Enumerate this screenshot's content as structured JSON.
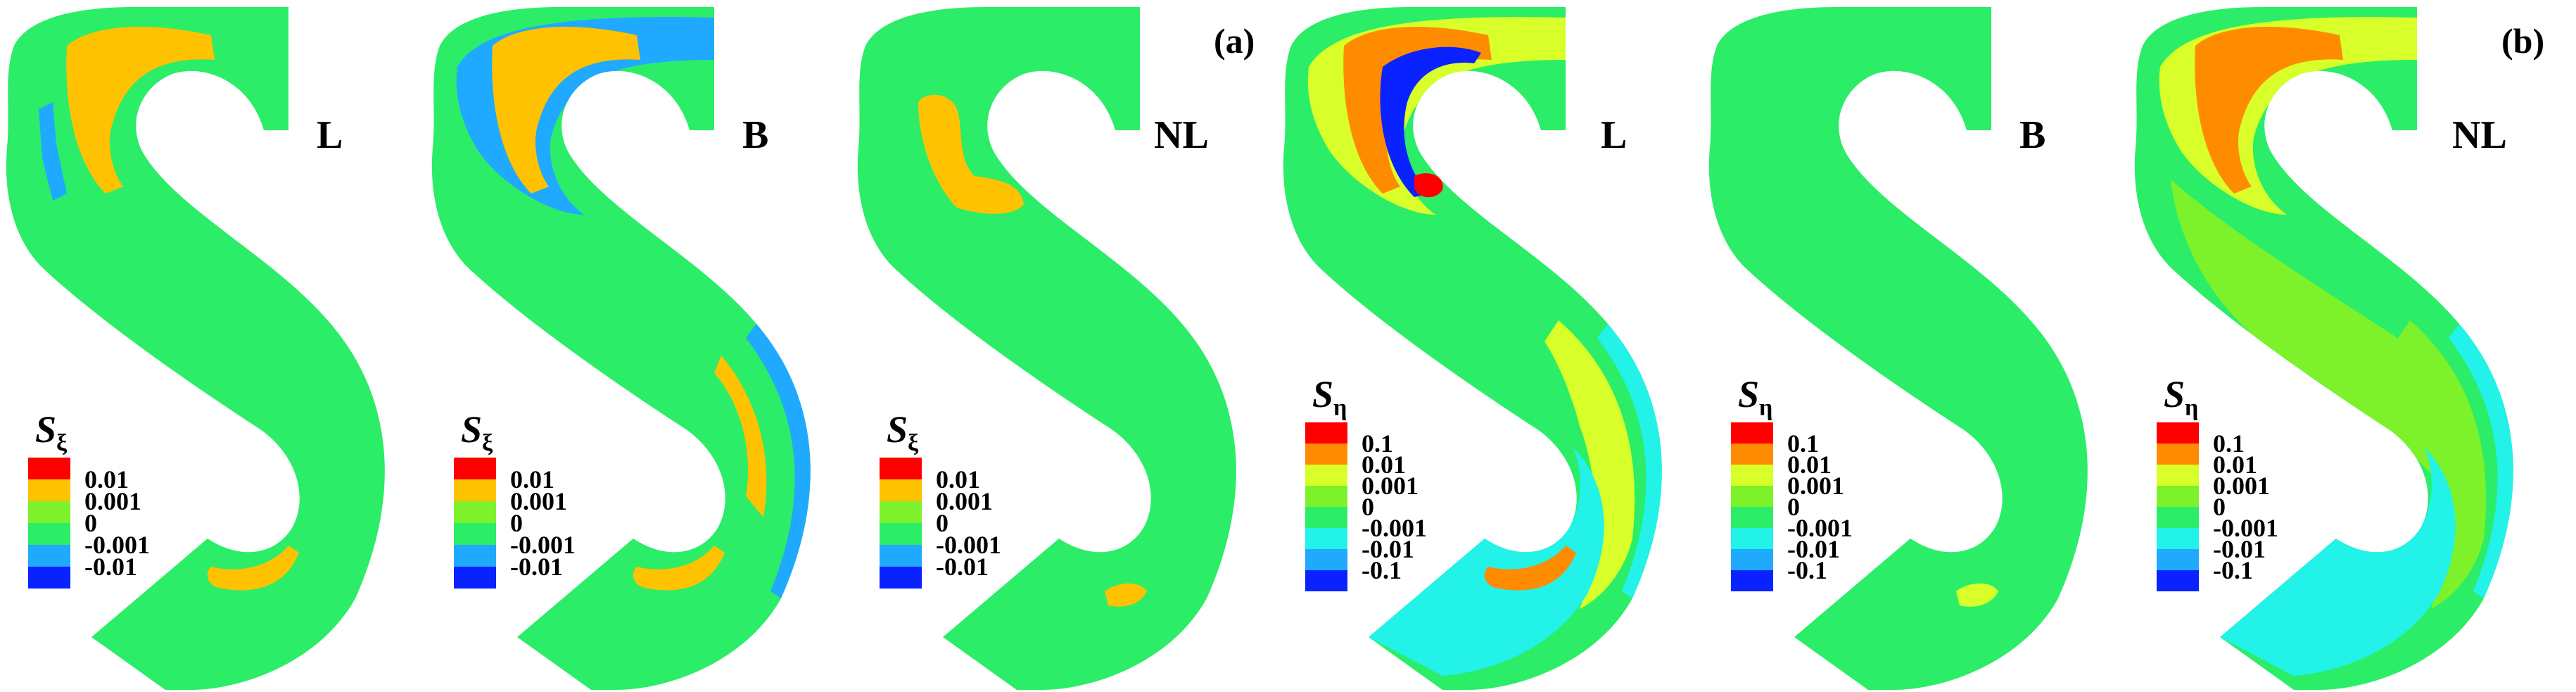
{
  "part_labels": [
    "(a)",
    "(b)"
  ],
  "colors": {
    "background": "#2bed68",
    "red": "#ff0000",
    "orange": "#ff8c00",
    "yellow_orange": "#ffc200",
    "yellow_green": "#d8ff2a",
    "light_green": "#7df22a",
    "green": "#2bed68",
    "cyan": "#22f2e8",
    "sky": "#1faaff",
    "blue": "#0a22ff"
  },
  "panels": [
    {
      "label": "L",
      "legend": {
        "symbol": "S",
        "subscript": "ξ",
        "levels": [
          "0.01",
          "0.001",
          "0",
          "-0.001",
          "-0.01"
        ],
        "swatches": [
          "red",
          "yellow_orange",
          "light_green",
          "green",
          "sky",
          "blue"
        ]
      },
      "features": [
        {
          "color": "yellow_orange",
          "kind": "upper-band"
        },
        {
          "color": "sky",
          "kind": "upper-left-strip"
        },
        {
          "color": "yellow_orange",
          "kind": "lower-tip"
        }
      ]
    },
    {
      "label": "B",
      "legend": {
        "symbol": "S",
        "subscript": "ξ",
        "levels": [
          "0.01",
          "0.001",
          "0",
          "-0.001",
          "-0.01"
        ],
        "swatches": [
          "red",
          "yellow_orange",
          "light_green",
          "green",
          "sky",
          "blue"
        ]
      },
      "features": [
        {
          "color": "sky",
          "kind": "upper-band-wide"
        },
        {
          "color": "yellow_orange",
          "kind": "upper-band"
        },
        {
          "color": "yellow_orange",
          "kind": "right-streak"
        },
        {
          "color": "sky",
          "kind": "right-outer-strip"
        },
        {
          "color": "yellow_orange",
          "kind": "lower-tip"
        }
      ]
    },
    {
      "label": "NL",
      "legend": {
        "symbol": "S",
        "subscript": "ξ",
        "levels": [
          "0.01",
          "0.001",
          "0",
          "-0.001",
          "-0.01"
        ],
        "swatches": [
          "red",
          "yellow_orange",
          "light_green",
          "green",
          "sky",
          "blue"
        ]
      },
      "features": [
        {
          "color": "yellow_orange",
          "kind": "upper-left-patch"
        },
        {
          "color": "yellow_orange",
          "kind": "lower-small"
        }
      ]
    },
    {
      "label": "L",
      "legend": {
        "symbol": "S",
        "subscript": "η",
        "levels": [
          "0.1",
          "0.01",
          "0.001",
          "0",
          "-0.001",
          "-0.01",
          "-0.1"
        ],
        "swatches": [
          "red",
          "orange",
          "yellow_green",
          "light_green",
          "green",
          "cyan",
          "sky",
          "blue"
        ]
      },
      "features": [
        {
          "color": "yellow_green",
          "kind": "upper-band-wide"
        },
        {
          "color": "orange",
          "kind": "upper-band"
        },
        {
          "color": "blue",
          "kind": "inner-edge-strip"
        },
        {
          "color": "red",
          "kind": "inner-spot"
        },
        {
          "color": "yellow_green",
          "kind": "right-streak-wide"
        },
        {
          "color": "cyan",
          "kind": "right-outer-strip"
        },
        {
          "color": "cyan",
          "kind": "lower-area"
        },
        {
          "color": "orange",
          "kind": "lower-tip"
        }
      ]
    },
    {
      "label": "B",
      "legend": {
        "symbol": "S",
        "subscript": "η",
        "levels": [
          "0.1",
          "0.01",
          "0.001",
          "0",
          "-0.001",
          "-0.01",
          "-0.1"
        ],
        "swatches": [
          "red",
          "orange",
          "yellow_green",
          "light_green",
          "green",
          "cyan",
          "sky",
          "blue"
        ]
      },
      "features": [
        {
          "color": "yellow_green",
          "kind": "lower-small"
        }
      ]
    },
    {
      "label": "NL",
      "legend": {
        "symbol": "S",
        "subscript": "η",
        "levels": [
          "0.1",
          "0.01",
          "0.001",
          "0",
          "-0.001",
          "-0.01",
          "-0.1"
        ],
        "swatches": [
          "red",
          "orange",
          "yellow_green",
          "light_green",
          "green",
          "cyan",
          "sky",
          "blue"
        ]
      },
      "features": [
        {
          "color": "light_green",
          "kind": "body-patch"
        },
        {
          "color": "yellow_green",
          "kind": "upper-band-wide"
        },
        {
          "color": "orange",
          "kind": "upper-band"
        },
        {
          "color": "light_green",
          "kind": "right-streak-wide"
        },
        {
          "color": "cyan",
          "kind": "right-outer-strip"
        },
        {
          "color": "cyan",
          "kind": "lower-area"
        }
      ]
    }
  ]
}
